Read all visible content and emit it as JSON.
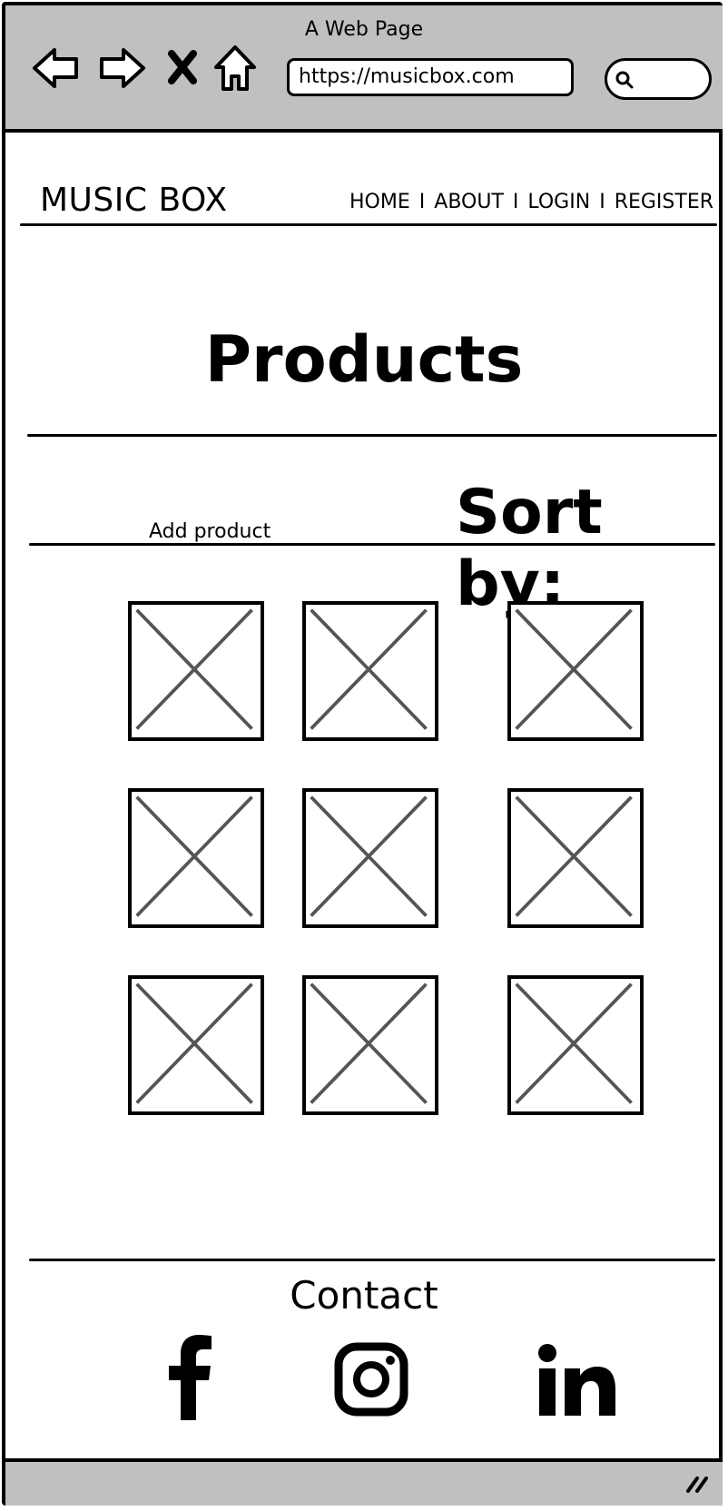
{
  "browser": {
    "window_title": "A Web Page",
    "url": "https://musicbox.com",
    "icons": [
      "back-arrow-icon",
      "forward-arrow-icon",
      "close-icon",
      "home-icon",
      "search-icon"
    ]
  },
  "site": {
    "brand": "MUSIC BOX",
    "nav": {
      "home": "HOME",
      "about": "ABOUT",
      "login": "LOGIN",
      "register": "REGISTER",
      "separator": "I"
    }
  },
  "main": {
    "title": "Products",
    "add_product": "Add product",
    "sort_by": "Sort by:"
  },
  "footer": {
    "contact": "Contact",
    "social_icons": [
      "facebook-icon",
      "instagram-icon",
      "linkedin-icon"
    ]
  }
}
